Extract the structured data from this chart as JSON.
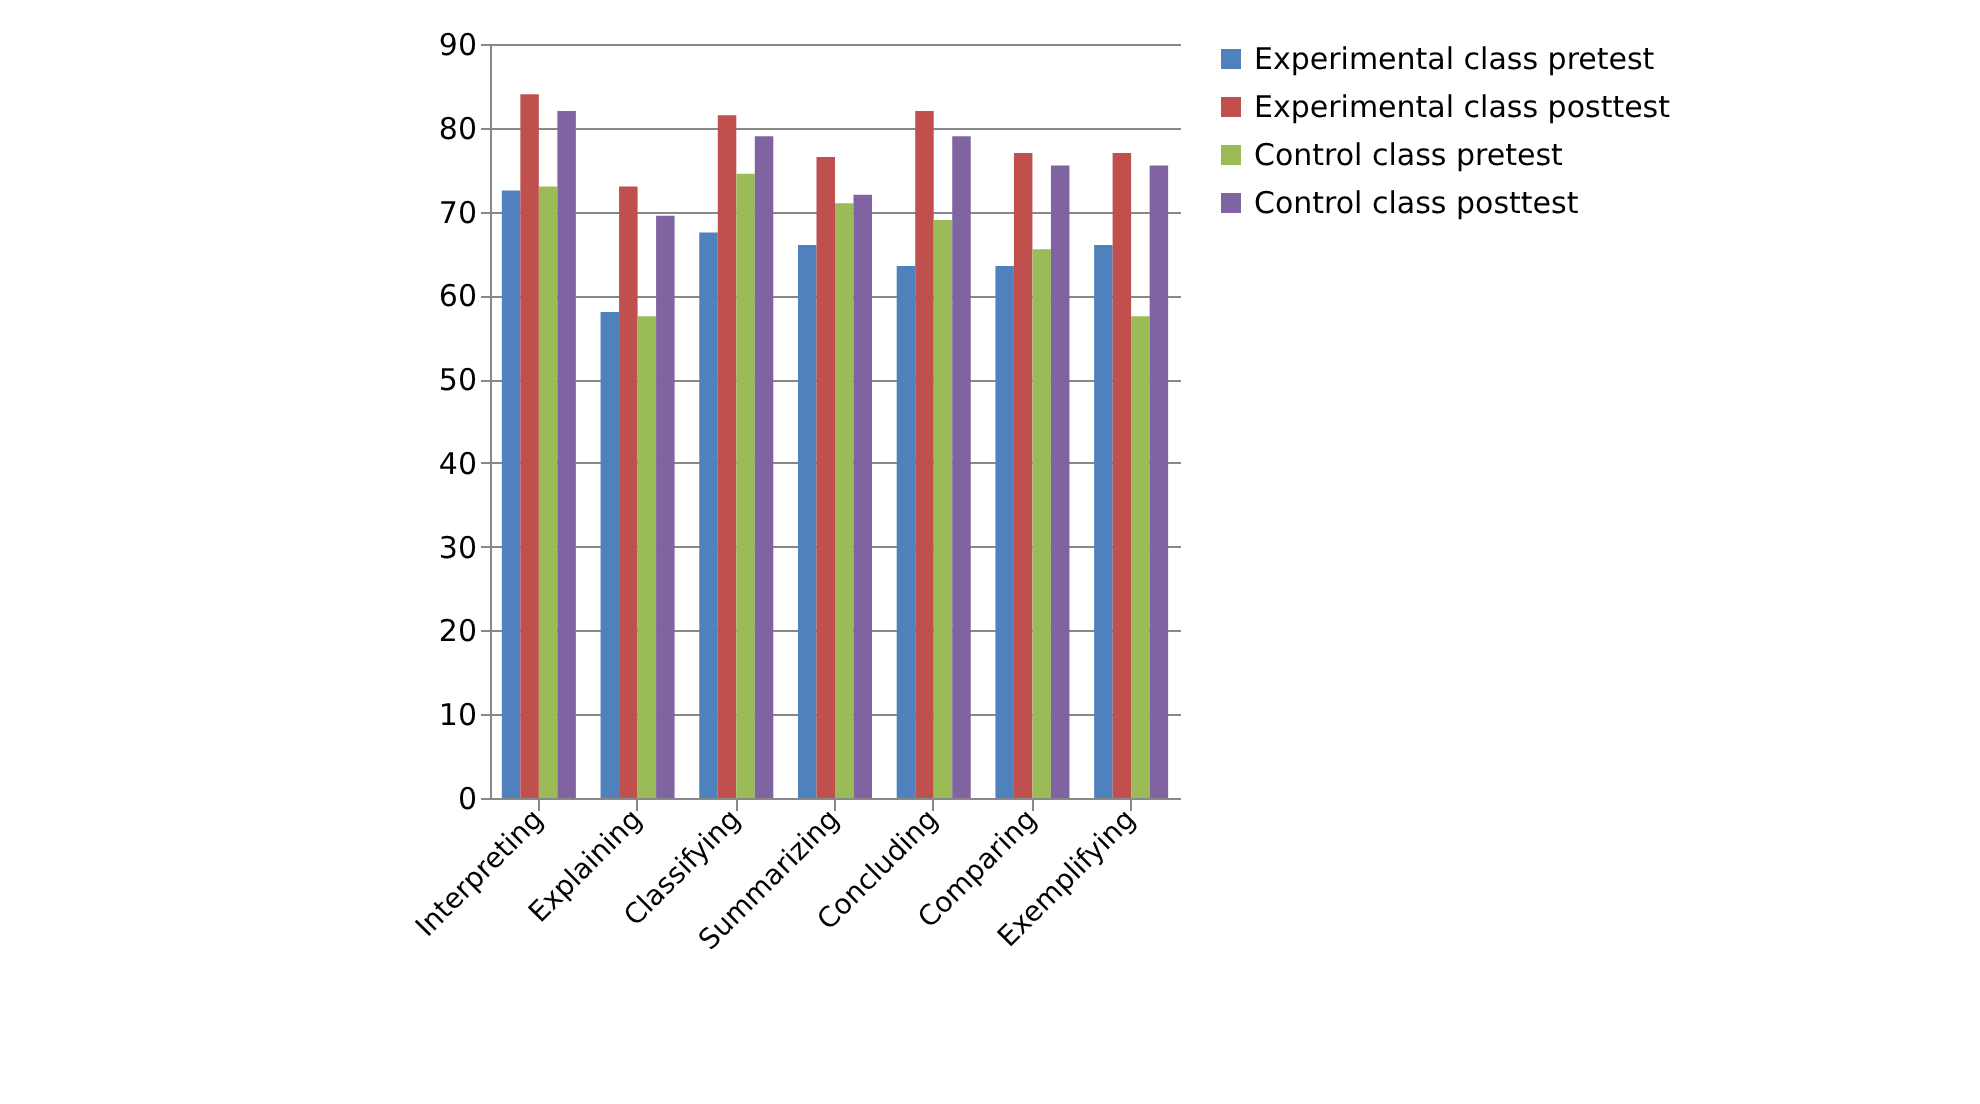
{
  "chart_data": {
    "type": "bar",
    "categories": [
      "Interpreting",
      "Explaining",
      "Classifying",
      "Summarizing",
      "Concluding",
      "Comparing",
      "Exemplifying"
    ],
    "series": [
      {
        "name": "Experimental class pretest",
        "color": "#4f81bd",
        "values": [
          72.5,
          58,
          67.5,
          66,
          63.5,
          63.5,
          66
        ]
      },
      {
        "name": "Experimental class posttest",
        "color": "#c0504d",
        "values": [
          84,
          73,
          81.5,
          76.5,
          82,
          77,
          77
        ]
      },
      {
        "name": "Control class pretest",
        "color": "#9bbb59",
        "values": [
          73,
          57.5,
          74.5,
          71,
          69,
          65.5,
          57.5
        ]
      },
      {
        "name": "Control class posttest",
        "color": "#8064a2",
        "values": [
          82,
          69.5,
          79,
          72,
          79,
          75.5,
          75.5
        ]
      }
    ],
    "ylim": [
      0,
      90
    ],
    "yticks": [
      0,
      10,
      20,
      30,
      40,
      50,
      60,
      70,
      80,
      90
    ],
    "grid": "y",
    "legend": "top right"
  }
}
